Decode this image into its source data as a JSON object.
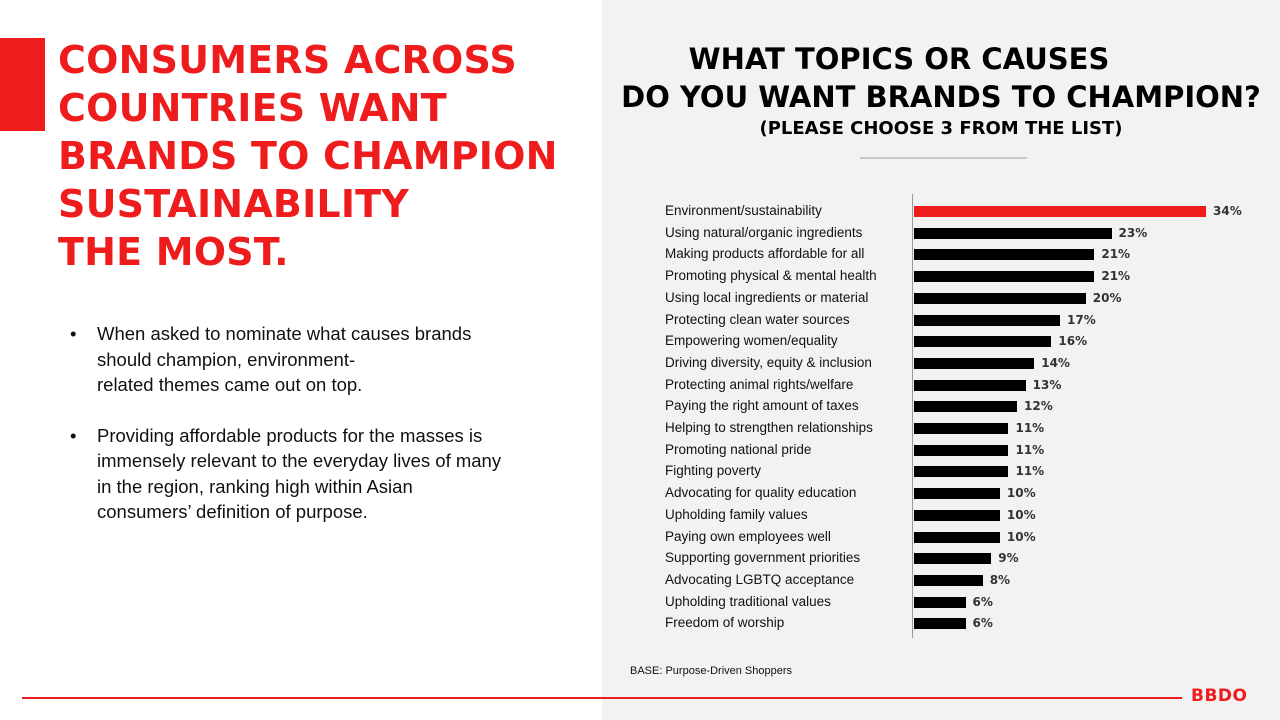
{
  "headline": {
    "lines": [
      "CONSUMERS ACROSS",
      "COUNTRIES WANT",
      "BRANDS TO CHAMPION",
      "SUSTAINABILITY",
      "THE MOST."
    ]
  },
  "bullets": [
    {
      "lines": [
        "When asked to nominate what causes brands",
        "should champion, environment-",
        "related themes came out on top."
      ]
    },
    {
      "lines": [
        "Providing affordable products for the masses is",
        "immensely relevant to the everyday lives of many",
        "in the region, ranking high within Asian",
        "consumers’ definition of purpose."
      ]
    }
  ],
  "colors": {
    "accent": "#ee1c1c",
    "bar_default": "#000000",
    "bar_highlight": "#ee1c1c",
    "panel_bg": "#f2f2f2"
  },
  "chart_data": {
    "type": "bar",
    "orientation": "horizontal",
    "title_lines": [
      "WHAT TOPICS OR CAUSES",
      "DO YOU WANT BRANDS TO CHAMPION?"
    ],
    "subtitle": "(PLEASE CHOOSE 3 FROM THE LIST)",
    "xlabel": "",
    "ylabel": "",
    "unit": "%",
    "xlim": [
      0,
      34
    ],
    "highlight_index": 0,
    "categories": [
      "Environment/sustainability",
      "Using natural/organic ingredients",
      "Making products affordable for all",
      "Promoting physical & mental health",
      "Using local ingredients or material",
      "Protecting clean water sources",
      "Empowering women/equality",
      "Driving diversity, equity & inclusion",
      "Protecting animal rights/welfare",
      "Paying the right amount of taxes",
      "Helping to strengthen relationships",
      "Promoting national pride",
      "Fighting poverty",
      "Advocating for quality education",
      "Upholding family values",
      "Paying own employees well",
      "Supporting government priorities",
      "Advocating LGBTQ acceptance",
      "Upholding traditional values",
      "Freedom of worship"
    ],
    "values": [
      34,
      23,
      21,
      21,
      20,
      17,
      16,
      14,
      13,
      12,
      11,
      11,
      11,
      10,
      10,
      10,
      9,
      8,
      6,
      6
    ],
    "value_labels": [
      "34%",
      "23%",
      "21%",
      "21%",
      "20%",
      "17%",
      "16%",
      "14%",
      "13%",
      "12%",
      "11%",
      "11%",
      "11%",
      "10%",
      "10%",
      "10%",
      "9%",
      "8%",
      "6%",
      "6%"
    ],
    "grid": false,
    "legend": "none"
  },
  "base_note": "BASE: Purpose-Driven Shoppers",
  "logo_text": "BBDO"
}
